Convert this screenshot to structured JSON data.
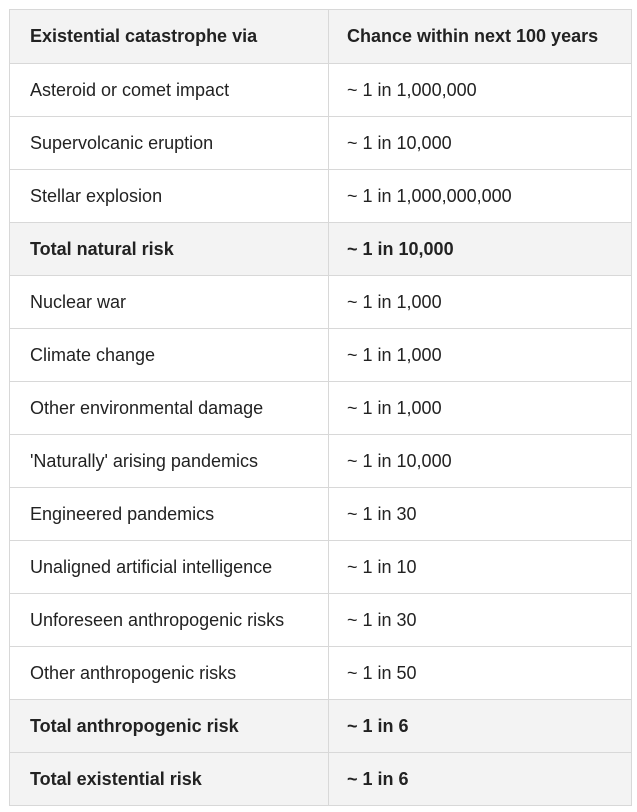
{
  "table": {
    "headers": [
      "Existential catastrophe via",
      "Chance within next 100 years"
    ],
    "rows": [
      {
        "label": "Asteroid or comet impact",
        "chance": "~ 1 in 1,000,000",
        "total": false
      },
      {
        "label": "Supervolcanic eruption",
        "chance": "~ 1 in 10,000",
        "total": false
      },
      {
        "label": "Stellar explosion",
        "chance": "~ 1 in 1,000,000,000",
        "total": false
      },
      {
        "label": "Total natural risk",
        "chance": "~ 1 in 10,000",
        "total": true
      },
      {
        "label": "Nuclear war",
        "chance": "~ 1 in 1,000",
        "total": false
      },
      {
        "label": "Climate change",
        "chance": "~ 1 in 1,000",
        "total": false
      },
      {
        "label": "Other environmental damage",
        "chance": "~ 1 in 1,000",
        "total": false
      },
      {
        "label": "'Naturally' arising pandemics",
        "chance": "~ 1 in 10,000",
        "total": false
      },
      {
        "label": "Engineered pandemics",
        "chance": "~ 1 in 30",
        "total": false
      },
      {
        "label": "Unaligned artificial intelligence",
        "chance": "~ 1 in 10",
        "total": false
      },
      {
        "label": "Unforeseen anthropogenic risks",
        "chance": "~ 1 in 30",
        "total": false
      },
      {
        "label": "Other anthropogenic risks",
        "chance": "~ 1 in 50",
        "total": false
      },
      {
        "label": "Total anthropogenic risk",
        "chance": "~ 1 in 6",
        "total": true
      },
      {
        "label": "Total existential risk",
        "chance": "~ 1 in 6",
        "total": true
      }
    ]
  },
  "colors": {
    "header_bg": "#f3f3f3",
    "border": "#d8d8d8",
    "text": "#222222"
  }
}
